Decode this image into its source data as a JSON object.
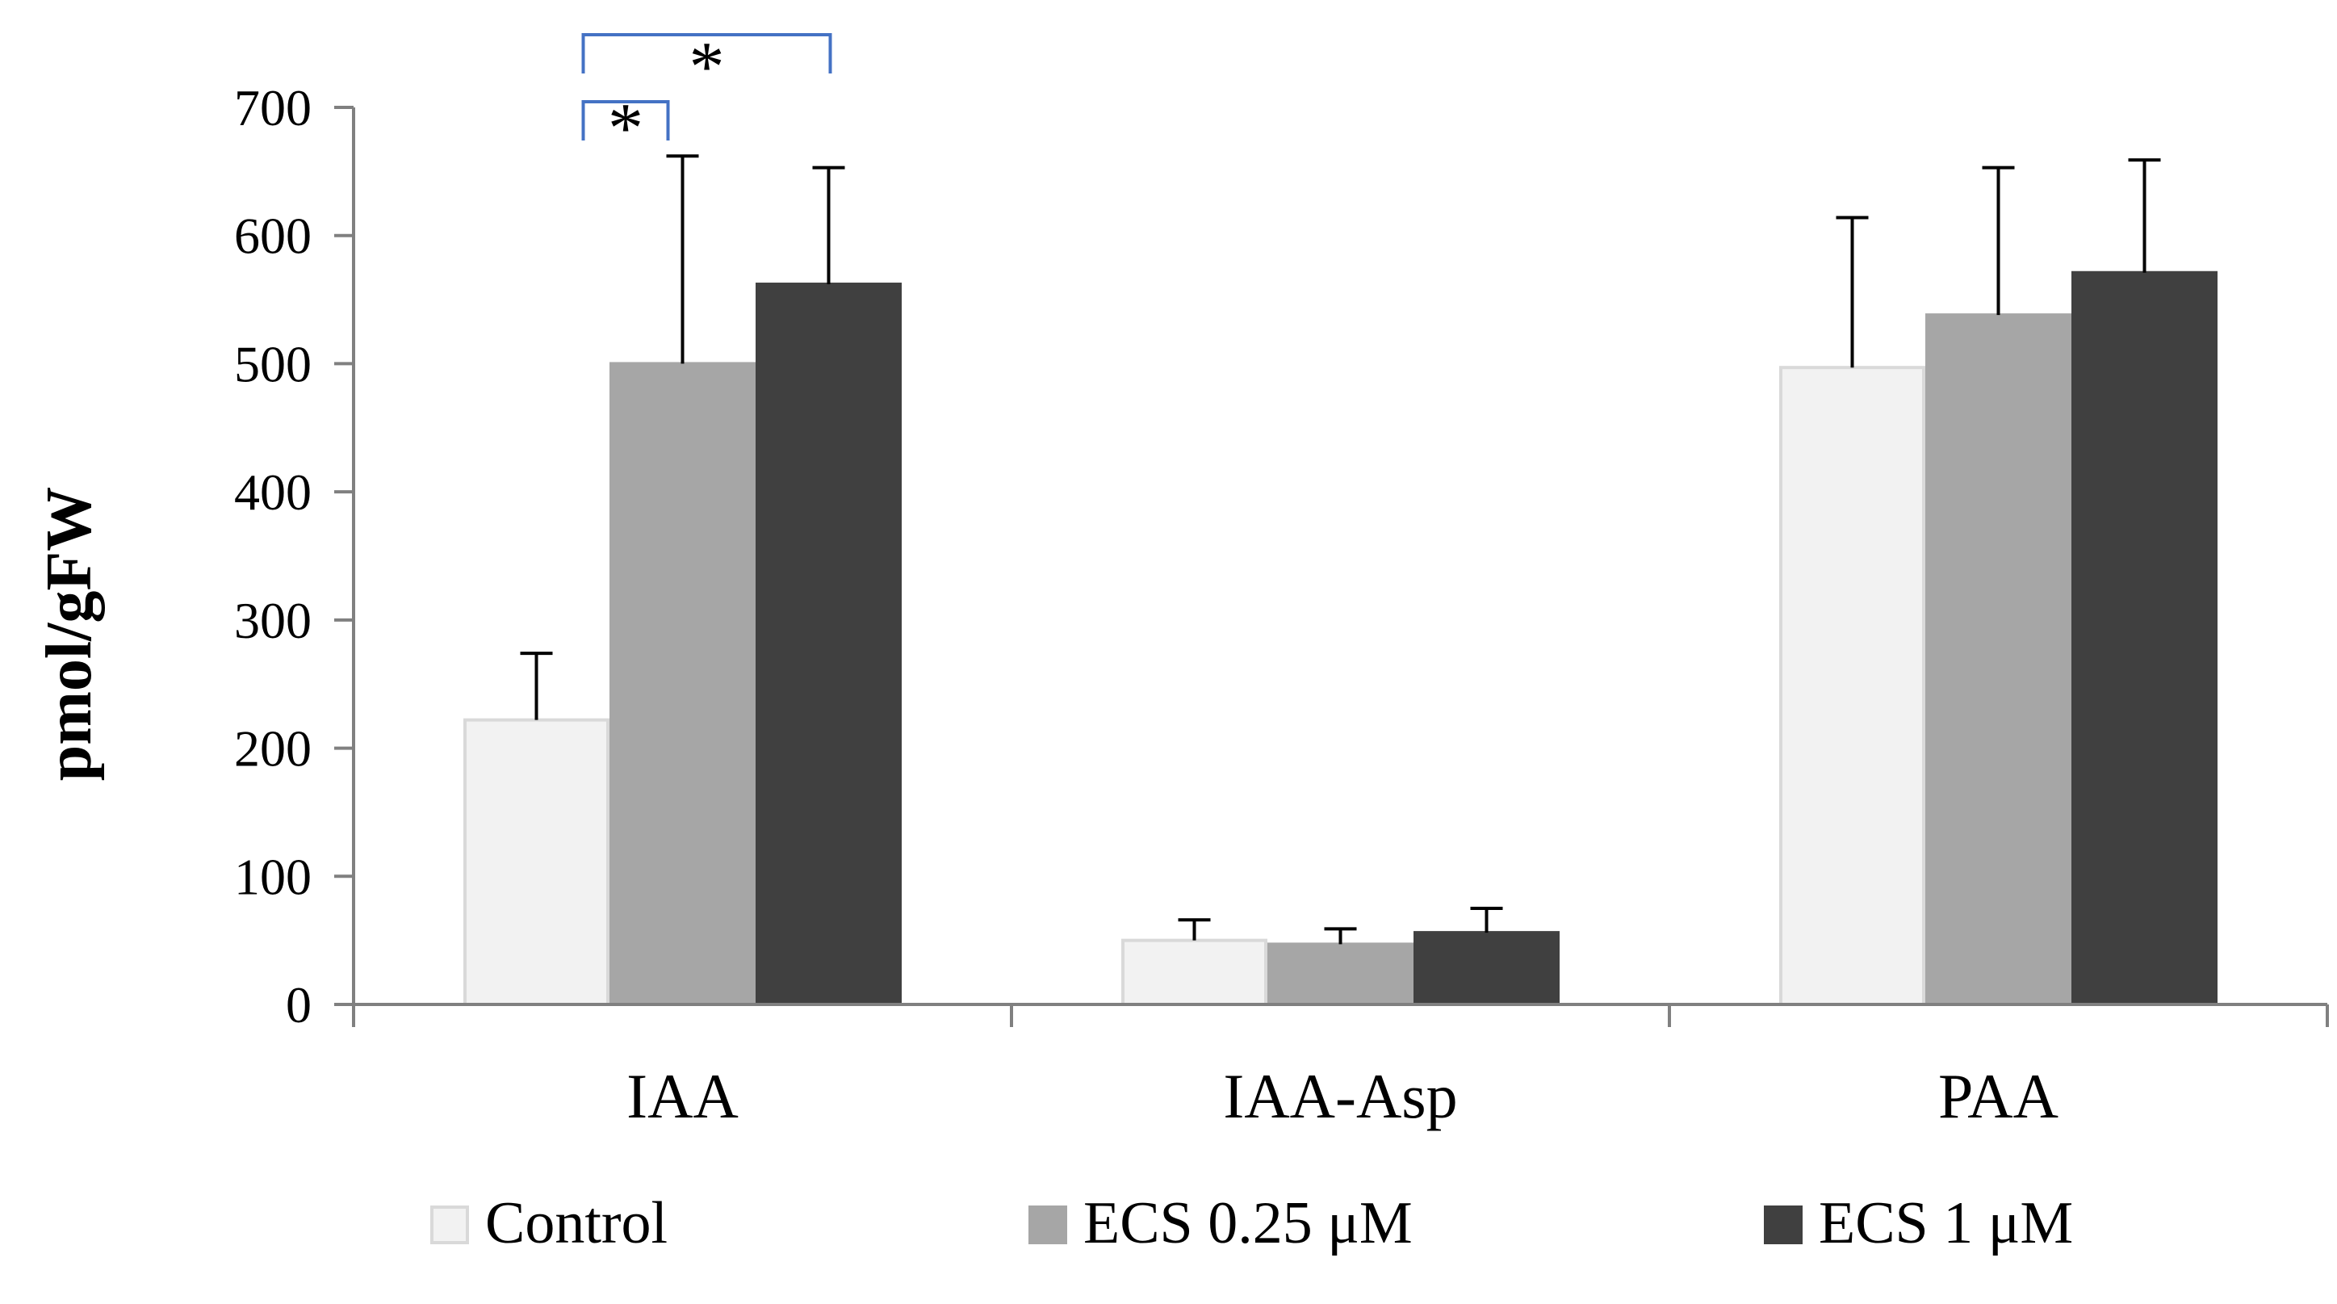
{
  "chart_data": {
    "type": "bar",
    "title": "",
    "xlabel": "",
    "ylabel": "pmol/gFW",
    "ylim": [
      0,
      700
    ],
    "yticks": [
      0,
      100,
      200,
      300,
      400,
      500,
      600,
      700
    ],
    "grid": false,
    "legend_position": "bottom",
    "categories": [
      "IAA",
      "IAA-Asp",
      "PAA"
    ],
    "series": [
      {
        "name": "Control",
        "color": "#f2f2f2",
        "edge": "#d9d9d9",
        "values": [
          222,
          50,
          497
        ],
        "errors": [
          52,
          16,
          117
        ]
      },
      {
        "name": "ECS 0.25 μM",
        "color": "#a6a6a6",
        "edge": "#a6a6a6",
        "values": [
          500,
          47,
          538
        ],
        "errors": [
          162,
          12,
          115
        ]
      },
      {
        "name": "ECS 1 μM",
        "color": "#404040",
        "edge": "#404040",
        "values": [
          562,
          56,
          571
        ],
        "errors": [
          91,
          19,
          88
        ]
      }
    ],
    "significance": [
      {
        "category": 0,
        "from_series": 0,
        "to_series": 1,
        "label": "*",
        "color": "#4472c4"
      },
      {
        "category": 0,
        "from_series": 0,
        "to_series": 2,
        "label": "*",
        "color": "#4472c4"
      }
    ]
  }
}
